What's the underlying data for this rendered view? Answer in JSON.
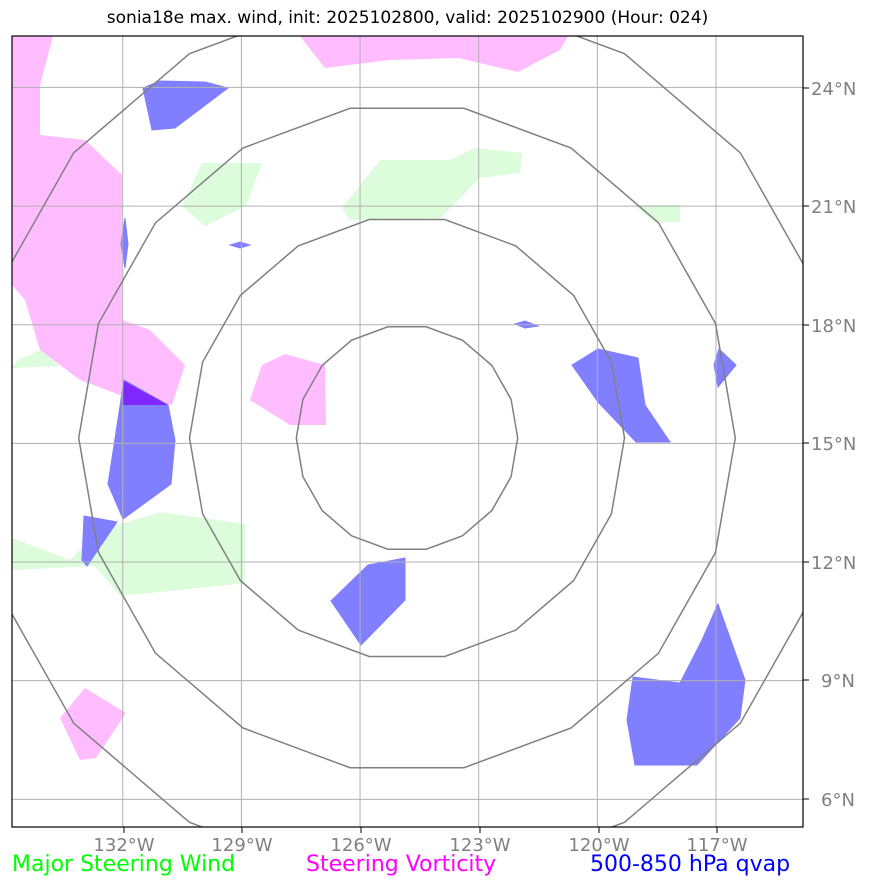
{
  "title": "sonia18e max. wind, init: 2025102800, valid: 2025102900 (Hour: 024)",
  "lon_ticks": [
    "132°W",
    "129°W",
    "126°W",
    "123°W",
    "120°W",
    "117°W"
  ],
  "lat_ticks": [
    "24°N",
    "21°N",
    "18°N",
    "15°N",
    "12°N",
    "9°N",
    "6°N"
  ],
  "legend": {
    "wind": {
      "label": "Major Steering Wind",
      "color": "#00ff00"
    },
    "vorticity": {
      "label": "Steering Vorticity",
      "color": "#ff00ff"
    },
    "qvap": {
      "label": "500-850 hPa qvap",
      "color": "#0000ff"
    }
  },
  "colors": {
    "wind_fill": "#dcfcdc",
    "vorticity_fill": "#ffbcff",
    "qvap_fill": "#7f7fff",
    "grid": "#b0b0b0",
    "rings": "#808080",
    "frame": "#000000"
  },
  "map_extent": {
    "lon_min": -134.8,
    "lon_max": -114.8,
    "lat_min": 5.3,
    "lat_max": 25.3
  },
  "range_rings_deg": [
    2.8,
    5.5,
    8.3,
    11.0
  ]
}
